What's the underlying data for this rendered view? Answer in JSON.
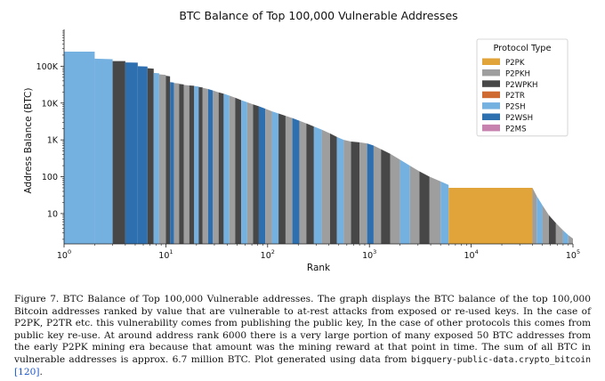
{
  "chart_data": {
    "type": "bar",
    "title": "BTC Balance of Top 100,000 Vulnerable Addresses",
    "xlabel": "Rank",
    "ylabel": "Address Balance (BTC)",
    "xscale": "log",
    "yscale": "log",
    "xlim": [
      1,
      100000
    ],
    "ylim": [
      1.5,
      1000000
    ],
    "x_ticks": [
      {
        "value": 1,
        "base": "10",
        "exp": "0"
      },
      {
        "value": 10,
        "base": "10",
        "exp": "1"
      },
      {
        "value": 100,
        "base": "10",
        "exp": "2"
      },
      {
        "value": 1000,
        "base": "10",
        "exp": "3"
      },
      {
        "value": 10000,
        "base": "10",
        "exp": "4"
      },
      {
        "value": 100000,
        "base": "10",
        "exp": "5"
      }
    ],
    "y_ticks": [
      {
        "value": 10,
        "label": "10"
      },
      {
        "value": 100,
        "label": "100"
      },
      {
        "value": 1000,
        "label": "1K"
      },
      {
        "value": 10000,
        "label": "10K"
      },
      {
        "value": 100000,
        "label": "100K"
      }
    ],
    "legend": {
      "title": "Protocol Type",
      "placement": "upper-right",
      "entries": [
        {
          "name": "P2PK",
          "color": "#e0a43a"
        },
        {
          "name": "P2PKH",
          "color": "#9e9e9e"
        },
        {
          "name": "P2WPKH",
          "color": "#474747"
        },
        {
          "name": "P2TR",
          "color": "#cf6a33"
        },
        {
          "name": "P2SH",
          "color": "#74b1e0"
        },
        {
          "name": "P2WSH",
          "color": "#2e6fb0"
        },
        {
          "name": "P2MS",
          "color": "#c882b0"
        }
      ]
    },
    "segments": [
      {
        "rank_start": 1,
        "rank_end": 2,
        "balance_start": 248000,
        "balance_end": 248000,
        "type": "P2SH"
      },
      {
        "rank_start": 2,
        "rank_end": 3,
        "balance_start": 160000,
        "balance_end": 155000,
        "type": "P2SH"
      },
      {
        "rank_start": 3,
        "rank_end": 4,
        "balance_start": 138000,
        "balance_end": 138000,
        "type": "P2WPKH"
      },
      {
        "rank_start": 4,
        "rank_end": 5.3,
        "balance_start": 127000,
        "balance_end": 125000,
        "type": "P2WSH"
      },
      {
        "rank_start": 5.3,
        "rank_end": 6.6,
        "balance_start": 100000,
        "balance_end": 98000,
        "type": "P2WSH"
      },
      {
        "rank_start": 6.6,
        "rank_end": 7.6,
        "balance_start": 88000,
        "balance_end": 86000,
        "type": "P2WPKH"
      },
      {
        "rank_start": 7.6,
        "rank_end": 8.6,
        "balance_start": 66000,
        "balance_end": 64000,
        "type": "P2SH"
      },
      {
        "rank_start": 8.6,
        "rank_end": 10,
        "balance_start": 60000,
        "balance_end": 58000,
        "type": "P2PKH"
      },
      {
        "rank_start": 10,
        "rank_end": 11,
        "balance_start": 55000,
        "balance_end": 53000,
        "type": "P2WPKH"
      },
      {
        "rank_start": 11,
        "rank_end": 12,
        "balance_start": 37000,
        "balance_end": 36000,
        "type": "P2WSH"
      },
      {
        "rank_start": 12,
        "rank_end": 13.5,
        "balance_start": 35000,
        "balance_end": 34000,
        "type": "P2PKH"
      },
      {
        "rank_start": 13.5,
        "rank_end": 15,
        "balance_start": 33000,
        "balance_end": 32000,
        "type": "P2WPKH"
      },
      {
        "rank_start": 15,
        "rank_end": 17,
        "balance_start": 31000,
        "balance_end": 30000,
        "type": "P2PKH"
      },
      {
        "rank_start": 17,
        "rank_end": 19,
        "balance_start": 30000,
        "balance_end": 29500,
        "type": "P2WPKH"
      },
      {
        "rank_start": 19,
        "rank_end": 21,
        "balance_start": 29000,
        "balance_end": 28000,
        "type": "P2SH"
      },
      {
        "rank_start": 21,
        "rank_end": 23,
        "balance_start": 27500,
        "balance_end": 26500,
        "type": "P2WPKH"
      },
      {
        "rank_start": 23,
        "rank_end": 26,
        "balance_start": 26000,
        "balance_end": 24000,
        "type": "P2PKH"
      },
      {
        "rank_start": 26,
        "rank_end": 29,
        "balance_start": 24000,
        "balance_end": 22000,
        "type": "P2WSH"
      },
      {
        "rank_start": 29,
        "rank_end": 33,
        "balance_start": 22000,
        "balance_end": 19500,
        "type": "P2PKH"
      },
      {
        "rank_start": 33,
        "rank_end": 37,
        "balance_start": 19500,
        "balance_end": 18000,
        "type": "P2WPKH"
      },
      {
        "rank_start": 37,
        "rank_end": 42,
        "balance_start": 18000,
        "balance_end": 16000,
        "type": "P2SH"
      },
      {
        "rank_start": 42,
        "rank_end": 48,
        "balance_start": 16000,
        "balance_end": 14000,
        "type": "P2PKH"
      },
      {
        "rank_start": 48,
        "rank_end": 55,
        "balance_start": 14000,
        "balance_end": 12000,
        "type": "P2WPKH"
      },
      {
        "rank_start": 55,
        "rank_end": 63,
        "balance_start": 12000,
        "balance_end": 10500,
        "type": "P2SH"
      },
      {
        "rank_start": 63,
        "rank_end": 72,
        "balance_start": 10500,
        "balance_end": 9200,
        "type": "P2PKH"
      },
      {
        "rank_start": 72,
        "rank_end": 82,
        "balance_start": 9200,
        "balance_end": 8200,
        "type": "P2WPKH"
      },
      {
        "rank_start": 82,
        "rank_end": 95,
        "balance_start": 8200,
        "balance_end": 7000,
        "type": "P2WSH"
      },
      {
        "rank_start": 95,
        "rank_end": 110,
        "balance_start": 7000,
        "balance_end": 6000,
        "type": "P2PKH"
      },
      {
        "rank_start": 110,
        "rank_end": 128,
        "balance_start": 6000,
        "balance_end": 5200,
        "type": "P2SH"
      },
      {
        "rank_start": 128,
        "rank_end": 150,
        "balance_start": 5200,
        "balance_end": 4500,
        "type": "P2WPKH"
      },
      {
        "rank_start": 150,
        "rank_end": 175,
        "balance_start": 4500,
        "balance_end": 3900,
        "type": "P2PKH"
      },
      {
        "rank_start": 175,
        "rank_end": 205,
        "balance_start": 3900,
        "balance_end": 3300,
        "type": "P2WSH"
      },
      {
        "rank_start": 205,
        "rank_end": 240,
        "balance_start": 3300,
        "balance_end": 2800,
        "type": "P2PKH"
      },
      {
        "rank_start": 240,
        "rank_end": 285,
        "balance_start": 2800,
        "balance_end": 2300,
        "type": "P2WPKH"
      },
      {
        "rank_start": 285,
        "rank_end": 340,
        "balance_start": 2300,
        "balance_end": 1900,
        "type": "P2SH"
      },
      {
        "rank_start": 340,
        "rank_end": 410,
        "balance_start": 1900,
        "balance_end": 1500,
        "type": "P2PKH"
      },
      {
        "rank_start": 410,
        "rank_end": 480,
        "balance_start": 1500,
        "balance_end": 1200,
        "type": "P2WPKH"
      },
      {
        "rank_start": 480,
        "rank_end": 560,
        "balance_start": 1200,
        "balance_end": 1000,
        "type": "P2SH"
      },
      {
        "rank_start": 560,
        "rank_end": 660,
        "balance_start": 1000,
        "balance_end": 900,
        "type": "P2PKH"
      },
      {
        "rank_start": 660,
        "rank_end": 800,
        "balance_start": 900,
        "balance_end": 860,
        "type": "P2WPKH"
      },
      {
        "rank_start": 800,
        "rank_end": 950,
        "balance_start": 860,
        "balance_end": 800,
        "type": "P2PKH"
      },
      {
        "rank_start": 950,
        "rank_end": 1100,
        "balance_start": 800,
        "balance_end": 700,
        "type": "P2WSH"
      },
      {
        "rank_start": 1100,
        "rank_end": 1300,
        "balance_start": 700,
        "balance_end": 560,
        "type": "P2PKH"
      },
      {
        "rank_start": 1300,
        "rank_end": 1600,
        "balance_start": 560,
        "balance_end": 420,
        "type": "P2WPKH"
      },
      {
        "rank_start": 1600,
        "rank_end": 2000,
        "balance_start": 420,
        "balance_end": 290,
        "type": "P2PKH"
      },
      {
        "rank_start": 2000,
        "rank_end": 2500,
        "balance_start": 290,
        "balance_end": 200,
        "type": "P2SH"
      },
      {
        "rank_start": 2500,
        "rank_end": 3100,
        "balance_start": 200,
        "balance_end": 140,
        "type": "P2PKH"
      },
      {
        "rank_start": 3100,
        "rank_end": 3900,
        "balance_start": 140,
        "balance_end": 100,
        "type": "P2WPKH"
      },
      {
        "rank_start": 3900,
        "rank_end": 5000,
        "balance_start": 100,
        "balance_end": 75,
        "type": "P2PKH"
      },
      {
        "rank_start": 5000,
        "rank_end": 6000,
        "balance_start": 75,
        "balance_end": 60,
        "type": "P2SH"
      },
      {
        "rank_start": 6000,
        "rank_end": 40000,
        "balance_start": 50,
        "balance_end": 50,
        "type": "P2PK"
      },
      {
        "rank_start": 40000,
        "rank_end": 44000,
        "balance_start": 50,
        "balance_end": 30,
        "type": "P2PKH"
      },
      {
        "rank_start": 44000,
        "rank_end": 50000,
        "balance_start": 30,
        "balance_end": 17,
        "type": "P2SH"
      },
      {
        "rank_start": 50000,
        "rank_end": 58000,
        "balance_start": 17,
        "balance_end": 9,
        "type": "P2PKH"
      },
      {
        "rank_start": 58000,
        "rank_end": 68000,
        "balance_start": 9,
        "balance_end": 5.5,
        "type": "P2WPKH"
      },
      {
        "rank_start": 68000,
        "rank_end": 80000,
        "balance_start": 5.5,
        "balance_end": 3.5,
        "type": "P2PKH"
      },
      {
        "rank_start": 80000,
        "rank_end": 90000,
        "balance_start": 3.5,
        "balance_end": 2.6,
        "type": "P2SH"
      },
      {
        "rank_start": 90000,
        "rank_end": 100000,
        "balance_start": 2.6,
        "balance_end": 2.1,
        "type": "P2PKH"
      }
    ]
  },
  "caption": {
    "part1": "Figure 7. BTC Balance of Top 100,000 Vulnerable addresses. The graph displays the BTC balance of the top 100,000 Bitcoin addresses ranked by value that are vulnerable to at-rest attacks from exposed or re-used keys. In the case of P2PK, P2TR etc. this vulnerability comes from publishing the public key, In the case of other protocols this comes from public key re-use. At around address rank 6000 there is a very large portion of many exposed 50 BTC addresses from the early P2PK mining era because that amount was the mining reward at that point in time. The sum of all BTC in vulnerable addresses is approx. 6.7 million BTC. Plot generated using data from ",
    "code": "bigquery-public-data.crypto_bitcoin",
    "space": " ",
    "cite": "[120]",
    "end": "."
  }
}
